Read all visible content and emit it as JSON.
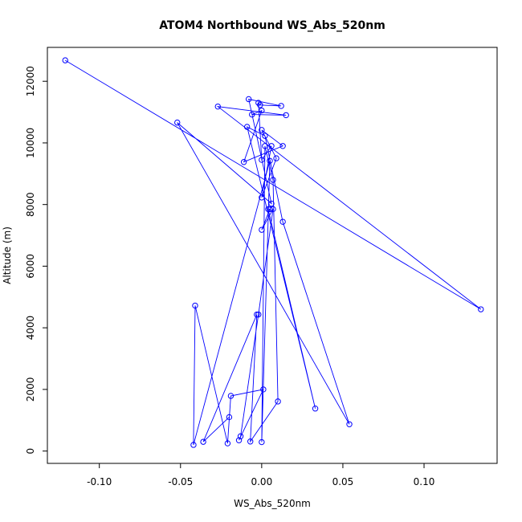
{
  "chart_data": {
    "type": "scatter",
    "title": "ATOM4 Northbound WS_Abs_520nm",
    "xlabel": "WS_Abs_520nm",
    "ylabel": "Altitude (m)",
    "xlim": [
      -0.132,
      0.145
    ],
    "ylim": [
      -400,
      13100
    ],
    "xticks": [
      -0.1,
      -0.05,
      0.0,
      0.05,
      0.1
    ],
    "xtick_labels": [
      "-0.10",
      "-0.05",
      "0.00",
      "0.05",
      "0.10"
    ],
    "yticks": [
      0,
      2000,
      4000,
      6000,
      8000,
      10000,
      12000
    ],
    "ytick_labels": [
      "0",
      "2000",
      "4000",
      "6000",
      "8000",
      "10000",
      "12000"
    ],
    "grid": false,
    "connected": true,
    "marker": "open-circle",
    "color": "#0000ff",
    "series": [
      {
        "x": [
          -0.121,
          0.135,
          -0.027,
          0.015,
          -0.006,
          0.0,
          -0.011,
          0.013,
          0.0,
          0.009,
          0.0,
          0.006,
          0.0,
          -0.002,
          -0.001,
          0.012,
          -0.008,
          0.006,
          -0.052,
          0.054,
          0.013,
          0.002,
          -0.009,
          0.033,
          0.004,
          0.005,
          0.0,
          0.007,
          -0.002,
          -0.013,
          -0.014,
          0.001,
          -0.019,
          -0.021,
          -0.041,
          -0.042,
          0.005,
          0.0,
          0.002,
          0.007,
          0.01,
          -0.007,
          -0.003,
          -0.036,
          -0.02
        ],
        "y": [
          12680,
          4600,
          11180,
          10900,
          10920,
          11050,
          9380,
          9900,
          10420,
          9500,
          8230,
          9900,
          9450,
          11300,
          11230,
          11200,
          11420,
          8030,
          10660,
          870,
          7440,
          10230,
          10520,
          1380,
          7850,
          7850,
          7180,
          7850,
          4430,
          480,
          350,
          2000,
          1790,
          250,
          4720,
          200,
          9420,
          290,
          9900,
          8800,
          1610,
          310,
          4430,
          300,
          1100
        ]
      }
    ]
  }
}
